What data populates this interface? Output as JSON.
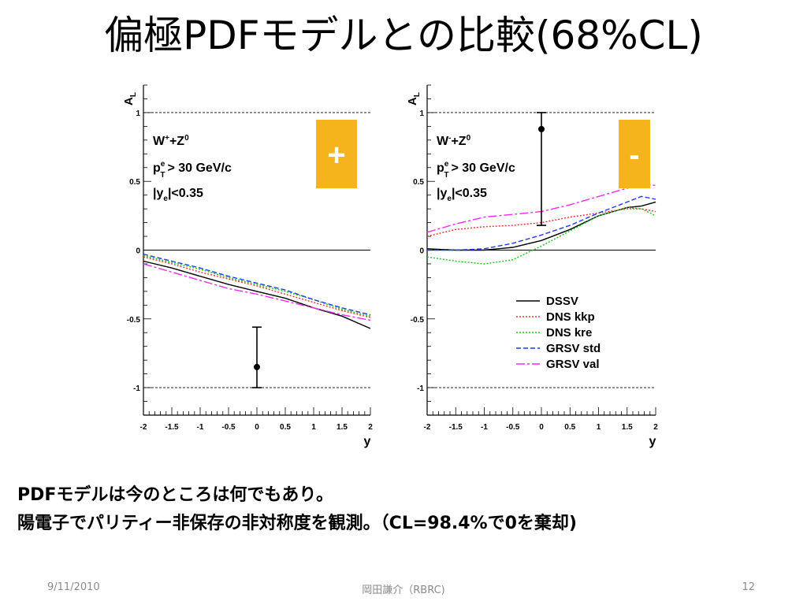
{
  "slide": {
    "title": "偏極PDFモデルとの比較(68%CL)",
    "body_line_1": "PDFモデルは今のところは何でもあり。",
    "body_line_2": "陽電子でパリティー非保存の非対称度を観測。（CL=98.4%で0を棄却)",
    "footer_date": "9/11/2010",
    "footer_author": "岡田謙介（RBRC)",
    "footer_page": "12"
  },
  "colors": {
    "badge": "#f5b31c",
    "DSSV": "#000000",
    "DNS kkp": "#e8322c",
    "DNS kre": "#19c519",
    "GRSV std": "#1f3cf0",
    "GRSV val": "#ee2cee"
  },
  "chart_data": [
    {
      "type": "line",
      "ylabel": "A_L",
      "xlabel": "y",
      "xlim": [
        -2,
        2
      ],
      "ylim": [
        -1.2,
        1.2
      ],
      "x_ticks": [
        "-2",
        "-1.5",
        "-1",
        "-0.5",
        "0",
        "0.5",
        "1",
        "1.5",
        "2"
      ],
      "y_ticks": [
        {
          "value": 1,
          "label": "1"
        },
        {
          "value": 0.5,
          "label": "0.5"
        },
        {
          "value": 0,
          "label": "0"
        },
        {
          "value": -0.5,
          "label": "-0.5"
        },
        {
          "value": -1,
          "label": "-1"
        }
      ],
      "reference_lines": [
        1,
        0,
        -1
      ],
      "annotations": [
        "W⁺+Z⁰",
        "p_T^e > 30 GeV/c",
        "|y_e|<0.35"
      ],
      "badge": "+",
      "data_point": {
        "x": 0,
        "y": -0.85,
        "yerr_low": 0.15,
        "yerr_high": 0.29
      },
      "x": [
        -2,
        -1.5,
        -1,
        -0.5,
        0,
        0.5,
        1,
        1.5,
        2
      ],
      "series": [
        {
          "name": "DSSV",
          "style": "solid",
          "values": [
            -0.08,
            -0.13,
            -0.19,
            -0.25,
            -0.3,
            -0.35,
            -0.42,
            -0.48,
            -0.57
          ]
        },
        {
          "name": "DNS kkp",
          "style": "dotted",
          "values": [
            -0.05,
            -0.1,
            -0.16,
            -0.21,
            -0.26,
            -0.32,
            -0.38,
            -0.44,
            -0.49
          ]
        },
        {
          "name": "DNS kre",
          "style": "dotted",
          "values": [
            -0.04,
            -0.09,
            -0.14,
            -0.2,
            -0.25,
            -0.3,
            -0.36,
            -0.43,
            -0.48
          ]
        },
        {
          "name": "GRSV std",
          "style": "dashed",
          "values": [
            -0.03,
            -0.08,
            -0.13,
            -0.19,
            -0.24,
            -0.29,
            -0.36,
            -0.42,
            -0.47
          ]
        },
        {
          "name": "GRSV val",
          "style": "dashdot",
          "values": [
            -0.1,
            -0.16,
            -0.22,
            -0.28,
            -0.32,
            -0.37,
            -0.42,
            -0.47,
            -0.51
          ]
        }
      ]
    },
    {
      "type": "line",
      "ylabel": "A_L",
      "xlabel": "y",
      "xlim": [
        -2,
        2
      ],
      "ylim": [
        -1.2,
        1.2
      ],
      "x_ticks": [
        "-2",
        "-1.5",
        "-1",
        "-0.5",
        "0",
        "0.5",
        "1",
        "1.5",
        "2"
      ],
      "y_ticks": [
        {
          "value": 1,
          "label": "1"
        },
        {
          "value": 0.5,
          "label": "0.5"
        },
        {
          "value": 0,
          "label": "0"
        },
        {
          "value": -0.5,
          "label": "-0.5"
        },
        {
          "value": -1,
          "label": "-1"
        }
      ],
      "reference_lines": [
        1,
        0,
        -1
      ],
      "annotations": [
        "W⁻+Z⁰",
        "p_T^e > 30 GeV/c",
        "|y_e|<0.35"
      ],
      "badge": "-",
      "data_point": {
        "x": 0,
        "y": 0.88,
        "yerr_low": 0.7,
        "yerr_high": 0.12
      },
      "legend": [
        "DSSV",
        "DNS kkp",
        "DNS kre",
        "GRSV std",
        "GRSV val"
      ],
      "legend_position": "bottom-right",
      "x": [
        -2,
        -1.5,
        -1,
        -0.5,
        0,
        0.5,
        1,
        1.5,
        1.75,
        2
      ],
      "series": [
        {
          "name": "DSSV",
          "style": "solid",
          "values": [
            0.01,
            0.0,
            0.0,
            0.02,
            0.07,
            0.15,
            0.25,
            0.31,
            0.32,
            0.35
          ]
        },
        {
          "name": "DNS kkp",
          "style": "dotted",
          "values": [
            0.1,
            0.15,
            0.17,
            0.18,
            0.2,
            0.24,
            0.27,
            0.3,
            0.3,
            0.28
          ]
        },
        {
          "name": "DNS kre",
          "style": "dotted",
          "values": [
            -0.05,
            -0.08,
            -0.1,
            -0.07,
            0.03,
            0.14,
            0.25,
            0.31,
            0.3,
            0.25
          ]
        },
        {
          "name": "GRSV std",
          "style": "dashed",
          "values": [
            0.0,
            0.0,
            0.01,
            0.05,
            0.11,
            0.18,
            0.27,
            0.35,
            0.39,
            0.37
          ]
        },
        {
          "name": "GRSV val",
          "style": "dashdot",
          "values": [
            0.13,
            0.19,
            0.24,
            0.26,
            0.28,
            0.33,
            0.39,
            0.45,
            0.48,
            0.47
          ]
        }
      ]
    }
  ]
}
